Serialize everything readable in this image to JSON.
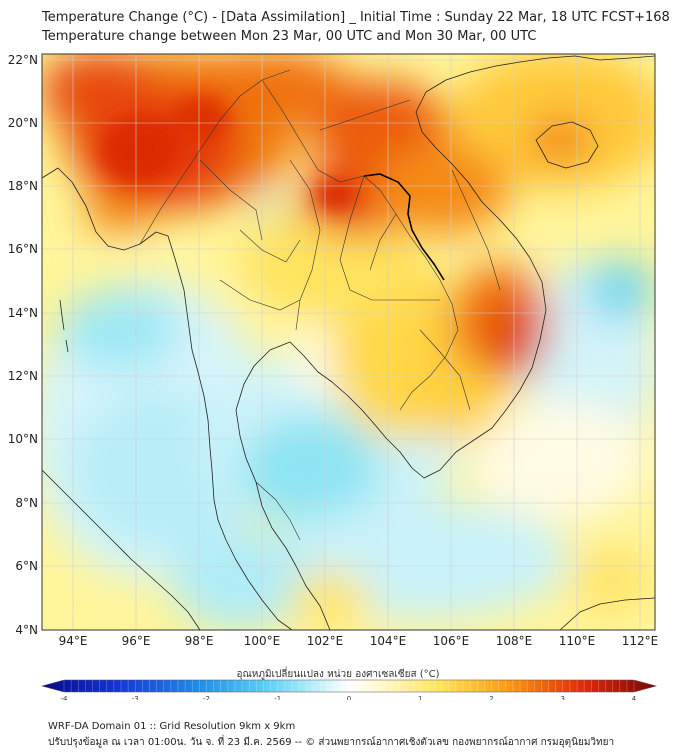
{
  "title_line1": "Temperature Change (°C) - [Data Assimilation] _ Initial Time : Sunday 22 Mar, 18 UTC FCST+168",
  "title_line2": "Temperature change between Mon 23 Mar, 00 UTC and Mon 30 Mar, 00 UTC",
  "map": {
    "lat_labels": [
      "22°N",
      "20°N",
      "18°N",
      "16°N",
      "14°N",
      "12°N",
      "10°N",
      "8°N",
      "6°N",
      "4°N"
    ],
    "lon_labels": [
      "94°E",
      "96°E",
      "98°E",
      "100°E",
      "102°E",
      "104°E",
      "106°E",
      "108°E",
      "110°E",
      "112°E"
    ],
    "lon_range": [
      93.0,
      112.5
    ],
    "lat_range": [
      4.0,
      22.2
    ]
  },
  "colorbar": {
    "label": "อุณหภูมิเปลี่ยนแปลง หน่วย องศาเซลเซียส (°C)",
    "ticks": [
      "-4",
      "-3",
      "-2",
      "-1",
      "0",
      "1",
      "2",
      "3",
      "4"
    ],
    "min": -4,
    "max": 4
  },
  "footer_line1": "WRF-DA Domain 01 :: Grid Resolution 9km x 9km",
  "footer_line2": "ปรับปรุงข้อมูล ณ เวลา 01:00น. วัน จ. ที่ 23 มี.ค. 2569 -- © ส่วนพยากรณ์อากาศเชิงตัวเลข กองพยากรณ์อากาศ กรมอุตุนิยมวิทยา",
  "colors": {
    "hot": "#d81e05",
    "warm": "#fb8c00",
    "mild": "#ffe45a",
    "neutral": "#fffde0",
    "cool": "#7fe3f3",
    "cold": "#2fa8e8"
  }
}
